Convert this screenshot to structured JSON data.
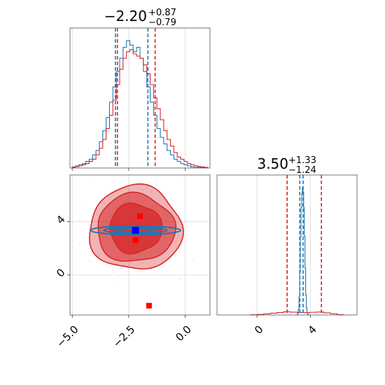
{
  "chart_data": [
    {
      "type": "histogram",
      "panel": "top-left",
      "parameter_index": 0,
      "title": {
        "median": "−2.20",
        "plus": "+0.87",
        "minus": "−0.79"
      },
      "xlim": [
        -5.1,
        1.1
      ],
      "grid": true,
      "series": [
        {
          "name": "",
          "color": "#1f77b4",
          "bin_edges": [
            -5.0,
            -4.85,
            -4.7,
            -4.55,
            -4.4,
            -4.25,
            -4.1,
            -3.95,
            -3.8,
            -3.65,
            -3.5,
            -3.35,
            -3.2,
            -3.05,
            -2.9,
            -2.75,
            -2.6,
            -2.45,
            -2.3,
            -2.15,
            -2.0,
            -1.85,
            -1.7,
            -1.55,
            -1.4,
            -1.25,
            -1.1,
            -0.95,
            -0.8,
            -0.65,
            -0.5,
            -0.35,
            -0.2,
            -0.05,
            0.1,
            0.25,
            0.4,
            0.55,
            0.7,
            0.85,
            1.0
          ],
          "counts": [
            0.5,
            1,
            1.5,
            2,
            3,
            4,
            6,
            8,
            12,
            17,
            23,
            30,
            37,
            44,
            50,
            55,
            58,
            56,
            53,
            55,
            50,
            44,
            37,
            30,
            24,
            18,
            14,
            11,
            8,
            6,
            4,
            3,
            2,
            1.5,
            1,
            0.5,
            0.4,
            0.3,
            0.2,
            0.1
          ],
          "quantiles": [
            -3.09,
            -2.2,
            -1.65
          ]
        },
        {
          "name": "",
          "color": "#d62728",
          "bin_edges": [
            -5.0,
            -4.85,
            -4.7,
            -4.55,
            -4.4,
            -4.25,
            -4.1,
            -3.95,
            -3.8,
            -3.65,
            -3.5,
            -3.35,
            -3.2,
            -3.05,
            -2.9,
            -2.75,
            -2.6,
            -2.45,
            -2.3,
            -2.15,
            -2.0,
            -1.85,
            -1.7,
            -1.55,
            -1.4,
            -1.25,
            -1.1,
            -0.95,
            -0.8,
            -0.65,
            -0.5,
            -0.35,
            -0.2,
            -0.05,
            0.1,
            0.25,
            0.4,
            0.55,
            0.7,
            0.85,
            1.0
          ],
          "counts": [
            0.3,
            0.6,
            1,
            1.5,
            2,
            3,
            4,
            6,
            9,
            13,
            18,
            24,
            31,
            38,
            45,
            50,
            53,
            54,
            52,
            51,
            50,
            47,
            43,
            38,
            32,
            27,
            22,
            17,
            13,
            10,
            7,
            5,
            4,
            3,
            2,
            1.5,
            1,
            0.7,
            0.5,
            0.3
          ],
          "quantiles": [
            -3.0,
            -2.2,
            -1.33
          ]
        }
      ]
    },
    {
      "type": "contour",
      "panel": "bottom-left",
      "xlim": [
        -5.1,
        1.1
      ],
      "ylim": [
        -3.0,
        7.5
      ],
      "xticks": [
        "−5.0",
        "−2.5",
        "0.0"
      ],
      "xtick_values": [
        -5.0,
        -2.5,
        0.0
      ],
      "yticks": [
        "0",
        "4"
      ],
      "ytick_values": [
        0,
        4
      ],
      "grid": true,
      "series": [
        {
          "name": "",
          "color": "#d62728",
          "center": [
            -2.2,
            3.5
          ],
          "levels_radius": [
            [
              1.15,
              1.85
            ],
            [
              1.72,
              2.55
            ],
            [
              2.05,
              3.15
            ]
          ],
          "fill_opacity": [
            0.75,
            0.55,
            0.35
          ],
          "markers": [
            [
              -2.0,
              4.4
            ],
            [
              -2.2,
              2.6
            ],
            [
              -1.6,
              -2.3
            ]
          ]
        },
        {
          "name": "",
          "color": "#1f77b4",
          "center": [
            -2.2,
            3.35
          ],
          "levels_radius": [
            [
              0.9,
              0.12
            ],
            [
              1.4,
              0.22
            ],
            [
              2.0,
              0.33
            ]
          ],
          "marker": [
            -2.2,
            3.35
          ]
        }
      ]
    },
    {
      "type": "histogram",
      "panel": "bottom-right",
      "parameter_index": 1,
      "title": {
        "median": "3.50",
        "plus": "+1.33",
        "minus": "−1.24"
      },
      "xlim": [
        -3.0,
        7.5
      ],
      "xticks": [
        "0",
        "4"
      ],
      "xtick_values": [
        0,
        4
      ],
      "grid": true,
      "series": [
        {
          "name": "",
          "color": "#d62728",
          "bin_edges": [
            -0.5,
            0.0,
            0.5,
            1.0,
            1.5,
            2.0,
            2.5,
            3.0,
            3.5,
            4.0,
            4.5,
            5.0,
            5.5,
            6.0,
            6.5
          ],
          "counts": [
            0.3,
            0.8,
            1.5,
            2.5,
            3.5,
            4.5,
            4.0,
            3.5,
            3.2,
            3.8,
            4.2,
            3.0,
            1.8,
            0.6
          ],
          "quantiles": [
            2.26,
            3.5,
            4.83
          ]
        },
        {
          "name": "",
          "color": "#1f77b4",
          "bin_edges": [
            3.0,
            3.05,
            3.1,
            3.15,
            3.2,
            3.25,
            3.3,
            3.35,
            3.4,
            3.45,
            3.5,
            3.55,
            3.6,
            3.65,
            3.7,
            3.75,
            3.8,
            3.85
          ],
          "counts": [
            0.5,
            2,
            8,
            25,
            60,
            110,
            150,
            170,
            178,
            172,
            150,
            110,
            65,
            28,
            10,
            3,
            1
          ],
          "quantiles": [
            3.21,
            3.35,
            3.46
          ]
        }
      ]
    }
  ]
}
